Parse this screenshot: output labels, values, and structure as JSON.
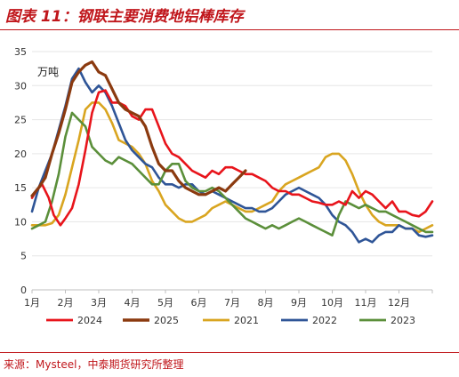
{
  "title": "图表 11：钢联主要消费地铝棒库存",
  "source": "来源：Mysteel，中泰期货研究所整理",
  "chart_data": {
    "type": "line",
    "unit_label": "万吨",
    "ylim": [
      0,
      35
    ],
    "yticks": [
      "0",
      "5",
      "10",
      "15",
      "20",
      "25",
      "30",
      "35"
    ],
    "xlim": [
      0,
      12
    ],
    "xticks": [
      "1月",
      "2月",
      "3月",
      "4月",
      "5月",
      "6月",
      "7月",
      "8月",
      "9月",
      "10月",
      "11月",
      "12月"
    ],
    "legend_position": "bottom",
    "series": [
      {
        "name": "2024",
        "color": "#e8141b",
        "points": [
          [
            0.0,
            13.5
          ],
          [
            0.12,
            14.5
          ],
          [
            0.3,
            15.5
          ],
          [
            0.5,
            13.5
          ],
          [
            0.65,
            11.0
          ],
          [
            0.85,
            9.5
          ],
          [
            1.0,
            10.5
          ],
          [
            1.2,
            12.0
          ],
          [
            1.4,
            15.5
          ],
          [
            1.6,
            20.5
          ],
          [
            1.8,
            26.0
          ],
          [
            2.0,
            29.0
          ],
          [
            2.2,
            29.3
          ],
          [
            2.4,
            27.5
          ],
          [
            2.6,
            27.5
          ],
          [
            2.8,
            27.0
          ],
          [
            3.0,
            25.5
          ],
          [
            3.2,
            25.0
          ],
          [
            3.4,
            26.5
          ],
          [
            3.6,
            26.5
          ],
          [
            3.8,
            24.0
          ],
          [
            4.0,
            21.5
          ],
          [
            4.2,
            20.0
          ],
          [
            4.4,
            19.5
          ],
          [
            4.6,
            18.5
          ],
          [
            4.8,
            17.5
          ],
          [
            5.0,
            17.0
          ],
          [
            5.2,
            16.5
          ],
          [
            5.4,
            17.5
          ],
          [
            5.6,
            17.0
          ],
          [
            5.8,
            18.0
          ],
          [
            6.0,
            18.0
          ],
          [
            6.2,
            17.5
          ],
          [
            6.4,
            17.0
          ],
          [
            6.6,
            17.0
          ],
          [
            6.8,
            16.5
          ],
          [
            7.0,
            16.0
          ],
          [
            7.2,
            15.0
          ],
          [
            7.4,
            14.5
          ],
          [
            7.6,
            14.5
          ],
          [
            7.8,
            14.0
          ],
          [
            8.0,
            14.0
          ],
          [
            8.2,
            13.5
          ],
          [
            8.4,
            13.0
          ],
          [
            8.6,
            12.8
          ],
          [
            8.8,
            12.5
          ],
          [
            9.0,
            12.5
          ],
          [
            9.2,
            13.0
          ],
          [
            9.4,
            12.5
          ],
          [
            9.6,
            14.5
          ],
          [
            9.8,
            13.5
          ],
          [
            10.0,
            14.5
          ],
          [
            10.2,
            14.0
          ],
          [
            10.4,
            13.0
          ],
          [
            10.6,
            12.0
          ],
          [
            10.8,
            13.0
          ],
          [
            11.0,
            11.5
          ],
          [
            11.2,
            11.5
          ],
          [
            11.4,
            11.0
          ],
          [
            11.6,
            10.8
          ],
          [
            11.8,
            11.5
          ],
          [
            12.0,
            13.0
          ]
        ]
      },
      {
        "name": "2025",
        "color": "#8b3a0f",
        "points": [
          [
            0.0,
            13.8
          ],
          [
            0.2,
            15.0
          ],
          [
            0.4,
            16.5
          ],
          [
            0.6,
            20.0
          ],
          [
            0.8,
            23.0
          ],
          [
            1.0,
            26.5
          ],
          [
            1.2,
            30.5
          ],
          [
            1.4,
            32.0
          ],
          [
            1.6,
            33.0
          ],
          [
            1.8,
            33.5
          ],
          [
            2.0,
            32.0
          ],
          [
            2.2,
            31.5
          ],
          [
            2.4,
            29.5
          ],
          [
            2.6,
            27.5
          ],
          [
            2.8,
            26.5
          ],
          [
            3.0,
            26.0
          ],
          [
            3.2,
            25.5
          ],
          [
            3.4,
            24.0
          ],
          [
            3.6,
            21.0
          ],
          [
            3.8,
            18.5
          ],
          [
            4.0,
            17.5
          ],
          [
            4.2,
            17.5
          ],
          [
            4.4,
            16.0
          ],
          [
            4.6,
            15.0
          ],
          [
            4.8,
            14.5
          ],
          [
            5.0,
            14.0
          ],
          [
            5.2,
            14.0
          ],
          [
            5.4,
            14.5
          ],
          [
            5.6,
            15.0
          ],
          [
            5.8,
            14.5
          ],
          [
            6.0,
            15.5
          ],
          [
            6.2,
            16.5
          ],
          [
            6.4,
            17.5
          ]
        ]
      },
      {
        "name": "2021",
        "color": "#d9a520",
        "points": [
          [
            0.0,
            9.5
          ],
          [
            0.2,
            9.5
          ],
          [
            0.4,
            9.5
          ],
          [
            0.6,
            9.8
          ],
          [
            0.8,
            11.0
          ],
          [
            1.0,
            14.0
          ],
          [
            1.2,
            18.0
          ],
          [
            1.4,
            22.0
          ],
          [
            1.6,
            26.5
          ],
          [
            1.8,
            27.5
          ],
          [
            2.0,
            27.5
          ],
          [
            2.2,
            26.5
          ],
          [
            2.4,
            24.5
          ],
          [
            2.6,
            22.0
          ],
          [
            2.8,
            21.5
          ],
          [
            3.0,
            21.0
          ],
          [
            3.2,
            20.0
          ],
          [
            3.4,
            18.5
          ],
          [
            3.6,
            16.0
          ],
          [
            3.8,
            14.5
          ],
          [
            4.0,
            12.5
          ],
          [
            4.2,
            11.5
          ],
          [
            4.4,
            10.5
          ],
          [
            4.6,
            10.0
          ],
          [
            4.8,
            10.0
          ],
          [
            5.0,
            10.5
          ],
          [
            5.2,
            11.0
          ],
          [
            5.4,
            12.0
          ],
          [
            5.6,
            12.5
          ],
          [
            5.8,
            13.0
          ],
          [
            6.0,
            12.5
          ],
          [
            6.2,
            12.0
          ],
          [
            6.4,
            11.5
          ],
          [
            6.6,
            11.5
          ],
          [
            6.8,
            12.0
          ],
          [
            7.0,
            12.5
          ],
          [
            7.2,
            13.0
          ],
          [
            7.4,
            14.5
          ],
          [
            7.6,
            15.5
          ],
          [
            7.8,
            16.0
          ],
          [
            8.0,
            16.5
          ],
          [
            8.2,
            17.0
          ],
          [
            8.4,
            17.5
          ],
          [
            8.6,
            18.0
          ],
          [
            8.8,
            19.5
          ],
          [
            9.0,
            20.0
          ],
          [
            9.2,
            20.0
          ],
          [
            9.4,
            19.0
          ],
          [
            9.6,
            17.0
          ],
          [
            9.8,
            14.5
          ],
          [
            10.0,
            12.5
          ],
          [
            10.2,
            11.0
          ],
          [
            10.4,
            10.0
          ],
          [
            10.6,
            9.5
          ],
          [
            10.8,
            9.5
          ],
          [
            11.0,
            9.5
          ],
          [
            11.2,
            9.0
          ],
          [
            11.4,
            9.0
          ],
          [
            11.6,
            8.5
          ],
          [
            11.8,
            9.0
          ],
          [
            12.0,
            9.5
          ]
        ]
      },
      {
        "name": "2022",
        "color": "#2f5597",
        "points": [
          [
            0.0,
            11.5
          ],
          [
            0.2,
            15.0
          ],
          [
            0.4,
            17.5
          ],
          [
            0.6,
            20.0
          ],
          [
            0.8,
            23.5
          ],
          [
            1.0,
            27.0
          ],
          [
            1.2,
            31.0
          ],
          [
            1.4,
            32.5
          ],
          [
            1.6,
            30.5
          ],
          [
            1.8,
            29.0
          ],
          [
            2.0,
            30.0
          ],
          [
            2.2,
            29.0
          ],
          [
            2.4,
            27.0
          ],
          [
            2.6,
            24.5
          ],
          [
            2.8,
            22.0
          ],
          [
            3.0,
            20.5
          ],
          [
            3.2,
            19.5
          ],
          [
            3.4,
            18.5
          ],
          [
            3.6,
            18.0
          ],
          [
            3.8,
            16.5
          ],
          [
            4.0,
            15.5
          ],
          [
            4.2,
            15.5
          ],
          [
            4.4,
            15.0
          ],
          [
            4.6,
            15.5
          ],
          [
            4.8,
            15.5
          ],
          [
            5.0,
            14.5
          ],
          [
            5.2,
            14.0
          ],
          [
            5.4,
            14.5
          ],
          [
            5.6,
            14.0
          ],
          [
            5.8,
            13.5
          ],
          [
            6.0,
            13.0
          ],
          [
            6.2,
            12.5
          ],
          [
            6.4,
            12.0
          ],
          [
            6.6,
            12.0
          ],
          [
            6.8,
            11.5
          ],
          [
            7.0,
            11.5
          ],
          [
            7.2,
            12.0
          ],
          [
            7.4,
            13.0
          ],
          [
            7.6,
            14.0
          ],
          [
            7.8,
            14.5
          ],
          [
            8.0,
            15.0
          ],
          [
            8.2,
            14.5
          ],
          [
            8.4,
            14.0
          ],
          [
            8.6,
            13.5
          ],
          [
            8.8,
            12.5
          ],
          [
            9.0,
            11.0
          ],
          [
            9.2,
            10.0
          ],
          [
            9.4,
            9.5
          ],
          [
            9.6,
            8.5
          ],
          [
            9.8,
            7.0
          ],
          [
            10.0,
            7.5
          ],
          [
            10.2,
            7.0
          ],
          [
            10.4,
            8.0
          ],
          [
            10.6,
            8.5
          ],
          [
            10.8,
            8.5
          ],
          [
            11.0,
            9.5
          ],
          [
            11.2,
            9.0
          ],
          [
            11.4,
            9.0
          ],
          [
            11.6,
            8.0
          ],
          [
            11.8,
            7.8
          ],
          [
            12.0,
            8.0
          ]
        ]
      },
      {
        "name": "2023",
        "color": "#5b8f3a",
        "points": [
          [
            0.0,
            9.0
          ],
          [
            0.2,
            9.5
          ],
          [
            0.4,
            10.0
          ],
          [
            0.6,
            13.0
          ],
          [
            0.8,
            17.0
          ],
          [
            1.0,
            22.5
          ],
          [
            1.2,
            26.0
          ],
          [
            1.4,
            25.0
          ],
          [
            1.6,
            24.0
          ],
          [
            1.8,
            21.0
          ],
          [
            2.0,
            20.0
          ],
          [
            2.2,
            19.0
          ],
          [
            2.4,
            18.5
          ],
          [
            2.6,
            19.5
          ],
          [
            2.8,
            19.0
          ],
          [
            3.0,
            18.5
          ],
          [
            3.2,
            17.5
          ],
          [
            3.4,
            16.5
          ],
          [
            3.6,
            15.5
          ],
          [
            3.8,
            15.5
          ],
          [
            4.0,
            17.5
          ],
          [
            4.2,
            18.5
          ],
          [
            4.4,
            18.5
          ],
          [
            4.6,
            16.0
          ],
          [
            4.8,
            15.0
          ],
          [
            5.0,
            14.5
          ],
          [
            5.2,
            14.5
          ],
          [
            5.4,
            15.0
          ],
          [
            5.6,
            14.5
          ],
          [
            5.8,
            13.5
          ],
          [
            6.0,
            12.5
          ],
          [
            6.2,
            11.5
          ],
          [
            6.4,
            10.5
          ],
          [
            6.6,
            10.0
          ],
          [
            6.8,
            9.5
          ],
          [
            7.0,
            9.0
          ],
          [
            7.2,
            9.5
          ],
          [
            7.4,
            9.0
          ],
          [
            7.6,
            9.5
          ],
          [
            7.8,
            10.0
          ],
          [
            8.0,
            10.5
          ],
          [
            8.2,
            10.0
          ],
          [
            8.4,
            9.5
          ],
          [
            8.6,
            9.0
          ],
          [
            8.8,
            8.5
          ],
          [
            9.0,
            8.0
          ],
          [
            9.2,
            11.0
          ],
          [
            9.4,
            13.0
          ],
          [
            9.6,
            12.5
          ],
          [
            9.8,
            12.0
          ],
          [
            10.0,
            12.5
          ],
          [
            10.2,
            12.0
          ],
          [
            10.4,
            11.5
          ],
          [
            10.6,
            11.5
          ],
          [
            10.8,
            11.0
          ],
          [
            11.0,
            10.5
          ],
          [
            11.2,
            10.0
          ],
          [
            11.4,
            9.5
          ],
          [
            11.6,
            9.0
          ],
          [
            11.8,
            8.5
          ],
          [
            12.0,
            8.5
          ]
        ]
      }
    ]
  }
}
